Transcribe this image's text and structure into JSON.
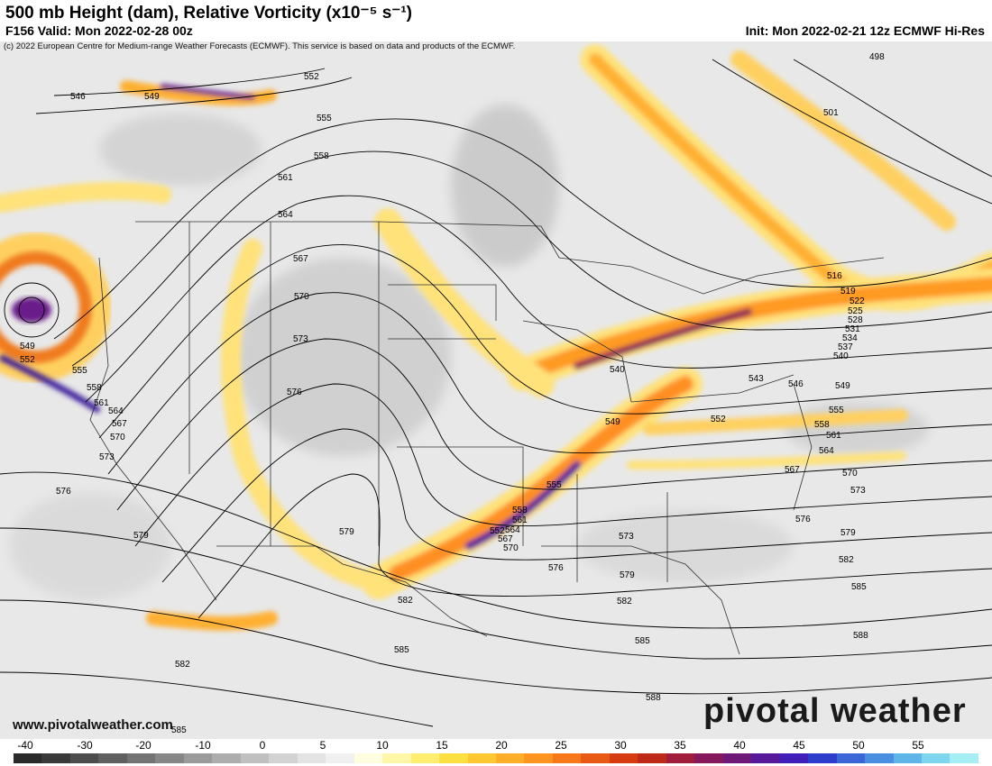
{
  "header": {
    "title": "500 mb Height (dam), Relative Vorticity (x10⁻⁵ s⁻¹)",
    "valid": "F156 Valid: Mon 2022-02-28 00z",
    "init": "Init: Mon 2022-02-21 12z ECMWF Hi-Res",
    "copyright": "(c) 2022 European Centre for Medium-range Weather Forecasts (ECMWF). This service is based on data and products of the ECMWF."
  },
  "footer": {
    "website": "www.pivotalweather.com",
    "brand": "pivotal weather"
  },
  "colorbar": {
    "ticks": [
      "-40",
      "-30",
      "-20",
      "-10",
      "0",
      "5",
      "10",
      "15",
      "20",
      "25",
      "30",
      "35",
      "40",
      "45",
      "50",
      "55"
    ],
    "colors": [
      "#2a2a2a",
      "#3a3a3a",
      "#4d4d4d",
      "#606060",
      "#737373",
      "#868686",
      "#9a9a9a",
      "#adadad",
      "#c0c0c0",
      "#d2d2d2",
      "#e3e3e3",
      "#f0f0f0",
      "#fffde0",
      "#fff6a8",
      "#ffee70",
      "#ffe040",
      "#ffc832",
      "#ffae2a",
      "#ff9420",
      "#f77818",
      "#e85a14",
      "#d63c10",
      "#bd2a18",
      "#a01e3a",
      "#86195c",
      "#6e1878",
      "#58189a",
      "#4020b8",
      "#2e3ccc",
      "#3a66d8",
      "#4a8ee0",
      "#5fb4e8",
      "#7ed6ee",
      "#a6eef4"
    ]
  },
  "contours": {
    "labels": [
      "546",
      "549",
      "552",
      "555",
      "558",
      "561",
      "564",
      "567",
      "570",
      "573",
      "576",
      "579",
      "582",
      "585",
      "588",
      "498",
      "501",
      "516",
      "519",
      "522",
      "525",
      "528",
      "531",
      "534",
      "537",
      "540",
      "543"
    ]
  },
  "map_labels": [
    {
      "text": "546"
    },
    {
      "text": "549"
    },
    {
      "text": "552"
    },
    {
      "text": "555"
    },
    {
      "text": "558"
    },
    {
      "text": "561"
    },
    {
      "text": "564"
    },
    {
      "text": "567"
    },
    {
      "text": "570"
    },
    {
      "text": "573"
    },
    {
      "text": "576"
    },
    {
      "text": "579"
    },
    {
      "text": "582"
    },
    {
      "text": "585"
    },
    {
      "text": "549"
    },
    {
      "text": "552"
    },
    {
      "text": "555"
    },
    {
      "text": "558"
    },
    {
      "text": "561"
    },
    {
      "text": "564"
    },
    {
      "text": "567"
    },
    {
      "text": "570"
    },
    {
      "text": "573"
    },
    {
      "text": "576"
    },
    {
      "text": "579"
    },
    {
      "text": "582"
    },
    {
      "text": "585"
    },
    {
      "text": "498"
    },
    {
      "text": "501"
    },
    {
      "text": "516"
    },
    {
      "text": "519"
    },
    {
      "text": "522"
    },
    {
      "text": "525"
    },
    {
      "text": "528"
    },
    {
      "text": "531"
    },
    {
      "text": "534"
    },
    {
      "text": "537"
    },
    {
      "text": "540"
    },
    {
      "text": "540"
    },
    {
      "text": "543"
    },
    {
      "text": "546"
    },
    {
      "text": "549"
    },
    {
      "text": "549"
    },
    {
      "text": "552"
    },
    {
      "text": "555"
    },
    {
      "text": "558"
    },
    {
      "text": "561"
    },
    {
      "text": "564"
    },
    {
      "text": "567"
    },
    {
      "text": "570"
    },
    {
      "text": "573"
    },
    {
      "text": "576"
    },
    {
      "text": "579"
    },
    {
      "text": "582"
    },
    {
      "text": "585"
    },
    {
      "text": "588"
    },
    {
      "text": "588"
    },
    {
      "text": "585"
    },
    {
      "text": "582"
    },
    {
      "text": "579"
    },
    {
      "text": "576"
    },
    {
      "text": "573"
    },
    {
      "text": "570"
    },
    {
      "text": "567"
    },
    {
      "text": "564"
    },
    {
      "text": "561"
    },
    {
      "text": "558"
    },
    {
      "text": "555"
    },
    {
      "text": "552"
    },
    {
      "text": "582"
    },
    {
      "text": "585"
    },
    {
      "text": "579"
    },
    {
      "text": "573"
    },
    {
      "text": "576"
    }
  ]
}
